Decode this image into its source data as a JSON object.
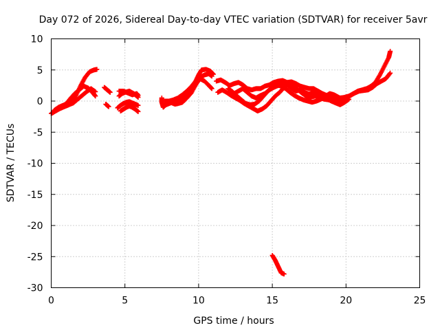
{
  "chart_data": {
    "type": "scatter",
    "title": "Day 072 of 2026, Sidereal Day-to-day VTEC variation (SDTVAR) for receiver 5avr",
    "xlabel": "GPS time / hours",
    "ylabel": "SDTVAR / TECUs",
    "xlim": [
      0,
      25
    ],
    "ylim": [
      -30,
      10
    ],
    "x_ticks": [
      "0",
      "5",
      "10",
      "15",
      "20",
      "25"
    ],
    "y_ticks": [
      "10",
      "5",
      "0",
      "-5",
      "-10",
      "-15",
      "-20",
      "-25",
      "-30"
    ],
    "grid": true,
    "marker": "+",
    "series": [
      {
        "name": "SDTVAR",
        "color": "#ff0000",
        "tracks": [
          [
            [
              0.0,
              -2.0
            ],
            [
              0.3,
              -1.6
            ],
            [
              0.6,
              -1.2
            ],
            [
              0.9,
              -0.9
            ],
            [
              1.2,
              -0.6
            ],
            [
              1.5,
              -0.3
            ],
            [
              1.8,
              0.3
            ],
            [
              2.1,
              0.9
            ],
            [
              2.4,
              1.5
            ],
            [
              2.7,
              2.0
            ],
            [
              3.0,
              1.5
            ]
          ],
          [
            [
              0.2,
              -1.5
            ],
            [
              0.5,
              -1.0
            ],
            [
              0.8,
              -0.7
            ],
            [
              1.1,
              -0.4
            ],
            [
              1.4,
              0.0
            ],
            [
              1.7,
              1.0
            ],
            [
              2.0,
              2.5
            ],
            [
              2.3,
              3.8
            ],
            [
              2.6,
              4.7
            ],
            [
              2.9,
              5.0
            ],
            [
              3.1,
              5.1
            ]
          ],
          [
            [
              0.1,
              -1.9
            ],
            [
              0.4,
              -1.3
            ],
            [
              0.7,
              -0.8
            ],
            [
              1.0,
              -0.5
            ],
            [
              1.3,
              0.4
            ],
            [
              1.6,
              1.2
            ],
            [
              1.9,
              1.8
            ],
            [
              2.2,
              2.4
            ],
            [
              2.5,
              2.1
            ],
            [
              2.8,
              1.4
            ],
            [
              3.0,
              0.8
            ]
          ],
          [
            [
              3.6,
              2.2
            ],
            [
              3.8,
              1.8
            ],
            [
              4.0,
              1.4
            ]
          ],
          [
            [
              3.7,
              -0.5
            ],
            [
              3.9,
              -0.9
            ]
          ],
          [
            [
              4.6,
              1.6
            ],
            [
              4.9,
              1.6
            ],
            [
              5.2,
              1.3
            ],
            [
              5.5,
              1.0
            ],
            [
              5.8,
              1.2
            ],
            [
              5.9,
              0.9
            ]
          ],
          [
            [
              4.6,
              0.8
            ],
            [
              4.8,
              1.2
            ],
            [
              5.0,
              1.4
            ],
            [
              5.3,
              1.6
            ],
            [
              5.6,
              1.2
            ],
            [
              5.9,
              0.6
            ]
          ],
          [
            [
              4.5,
              -1.1
            ],
            [
              4.7,
              -0.7
            ],
            [
              4.9,
              -0.4
            ],
            [
              5.1,
              -0.2
            ],
            [
              5.3,
              -0.1
            ],
            [
              5.5,
              -0.3
            ],
            [
              5.7,
              -0.5
            ],
            [
              5.9,
              -0.7
            ]
          ],
          [
            [
              4.7,
              -1.6
            ],
            [
              4.9,
              -1.3
            ],
            [
              5.1,
              -1.0
            ],
            [
              5.3,
              -0.8
            ],
            [
              5.5,
              -1.0
            ],
            [
              5.7,
              -1.3
            ],
            [
              5.9,
              -1.7
            ]
          ],
          [
            [
              7.5,
              0.5
            ],
            [
              7.5,
              -0.2
            ],
            [
              7.6,
              -1.0
            ],
            [
              7.8,
              -0.5
            ],
            [
              8.0,
              0.0
            ],
            [
              8.2,
              -0.3
            ],
            [
              8.4,
              -0.5
            ],
            [
              8.6,
              -0.4
            ],
            [
              8.9,
              -0.2
            ],
            [
              9.2,
              0.5
            ],
            [
              9.5,
              1.3
            ],
            [
              9.8,
              2.6
            ],
            [
              10.1,
              3.8
            ],
            [
              10.4,
              4.2
            ],
            [
              10.7,
              4.4
            ],
            [
              10.9,
              4.0
            ]
          ],
          [
            [
              7.7,
              0.0
            ],
            [
              8.0,
              0.0
            ],
            [
              8.3,
              0.2
            ],
            [
              8.6,
              0.5
            ],
            [
              8.9,
              1.0
            ],
            [
              9.2,
              1.6
            ],
            [
              9.5,
              2.3
            ],
            [
              9.8,
              3.2
            ],
            [
              10.0,
              4.2
            ],
            [
              10.2,
              5.0
            ],
            [
              10.5,
              5.1
            ],
            [
              10.8,
              4.8
            ],
            [
              11.0,
              4.3
            ]
          ],
          [
            [
              7.8,
              -0.6
            ],
            [
              8.1,
              -0.3
            ],
            [
              8.4,
              0.0
            ],
            [
              8.7,
              0.3
            ],
            [
              9.0,
              0.7
            ],
            [
              9.3,
              1.2
            ],
            [
              9.6,
              2.0
            ],
            [
              9.9,
              3.0
            ],
            [
              10.1,
              3.6
            ],
            [
              10.4,
              3.2
            ],
            [
              10.7,
              2.5
            ],
            [
              10.9,
              2.0
            ]
          ],
          [
            [
              11.2,
              3.2
            ],
            [
              11.5,
              3.4
            ],
            [
              11.8,
              3.0
            ],
            [
              12.1,
              2.5
            ],
            [
              12.4,
              2.8
            ],
            [
              12.7,
              3.0
            ],
            [
              13.0,
              2.6
            ],
            [
              13.3,
              2.0
            ],
            [
              13.6,
              1.8
            ],
            [
              13.9,
              2.0
            ],
            [
              14.2,
              2.0
            ],
            [
              14.5,
              2.4
            ],
            [
              14.8,
              2.6
            ],
            [
              15.1,
              3.0
            ],
            [
              15.4,
              3.2
            ],
            [
              15.7,
              3.3
            ],
            [
              16.0,
              3.0
            ],
            [
              16.3,
              3.1
            ],
            [
              16.6,
              2.8
            ],
            [
              16.9,
              2.4
            ],
            [
              17.2,
              2.2
            ],
            [
              17.5,
              2.0
            ],
            [
              17.8,
              2.0
            ],
            [
              18.1,
              1.6
            ],
            [
              18.4,
              1.2
            ],
            [
              18.7,
              0.9
            ],
            [
              19.0,
              0.6
            ],
            [
              19.3,
              0.5
            ],
            [
              19.6,
              0.5
            ],
            [
              19.9,
              0.6
            ],
            [
              20.2,
              0.8
            ],
            [
              20.5,
              1.2
            ],
            [
              20.8,
              1.6
            ],
            [
              21.1,
              1.8
            ],
            [
              21.4,
              2.0
            ],
            [
              21.7,
              2.4
            ],
            [
              22.0,
              3.0
            ],
            [
              22.3,
              4.2
            ],
            [
              22.6,
              5.6
            ],
            [
              22.9,
              7.0
            ],
            [
              23.0,
              8.0
            ]
          ],
          [
            [
              11.3,
              1.4
            ],
            [
              11.6,
              1.8
            ],
            [
              11.9,
              1.4
            ],
            [
              12.2,
              0.9
            ],
            [
              12.5,
              0.5
            ],
            [
              12.8,
              0.1
            ],
            [
              13.1,
              -0.4
            ],
            [
              13.4,
              -0.8
            ],
            [
              13.7,
              -1.2
            ],
            [
              14.0,
              -1.6
            ],
            [
              14.3,
              -1.3
            ],
            [
              14.6,
              -0.8
            ],
            [
              14.9,
              0.0
            ],
            [
              15.2,
              0.8
            ],
            [
              15.5,
              1.4
            ],
            [
              15.8,
              2.2
            ],
            [
              16.1,
              2.8
            ],
            [
              16.4,
              2.4
            ],
            [
              16.7,
              1.9
            ],
            [
              17.0,
              1.3
            ],
            [
              17.3,
              0.8
            ],
            [
              17.6,
              0.6
            ],
            [
              17.9,
              0.8
            ],
            [
              18.2,
              0.6
            ],
            [
              18.5,
              0.3
            ],
            [
              18.8,
              0.2
            ],
            [
              19.1,
              0.1
            ],
            [
              19.4,
              -0.1
            ],
            [
              19.7,
              0.2
            ],
            [
              20.0,
              0.4
            ],
            [
              20.3,
              0.9
            ],
            [
              20.6,
              1.3
            ],
            [
              20.9,
              1.6
            ],
            [
              21.2,
              1.7
            ],
            [
              21.5,
              1.8
            ],
            [
              21.8,
              2.2
            ],
            [
              22.1,
              2.8
            ],
            [
              22.4,
              3.2
            ],
            [
              22.7,
              3.6
            ],
            [
              23.0,
              4.5
            ]
          ],
          [
            [
              12.0,
              2.0
            ],
            [
              12.3,
              1.5
            ],
            [
              12.6,
              0.8
            ],
            [
              12.9,
              0.2
            ],
            [
              13.2,
              -0.4
            ],
            [
              13.5,
              -0.6
            ],
            [
              13.8,
              -0.5
            ],
            [
              14.1,
              0.0
            ],
            [
              14.4,
              0.8
            ],
            [
              14.7,
              1.6
            ],
            [
              15.0,
              2.2
            ],
            [
              15.3,
              2.6
            ],
            [
              15.6,
              2.4
            ],
            [
              15.9,
              2.0
            ],
            [
              16.2,
              1.4
            ],
            [
              16.5,
              0.9
            ],
            [
              16.8,
              0.5
            ],
            [
              17.1,
              0.2
            ],
            [
              17.4,
              0.0
            ],
            [
              17.7,
              -0.2
            ],
            [
              18.0,
              0.0
            ],
            [
              18.3,
              0.3
            ],
            [
              18.6,
              0.8
            ],
            [
              18.9,
              1.2
            ],
            [
              19.2,
              1.0
            ],
            [
              19.5,
              0.6
            ],
            [
              19.8,
              0.3
            ],
            [
              20.1,
              0.5
            ]
          ],
          [
            [
              12.4,
              1.2
            ],
            [
              12.7,
              1.6
            ],
            [
              13.0,
              2.0
            ],
            [
              13.3,
              1.4
            ],
            [
              13.6,
              0.8
            ],
            [
              13.9,
              0.5
            ],
            [
              14.2,
              0.9
            ],
            [
              14.5,
              1.2
            ],
            [
              14.8,
              1.8
            ],
            [
              15.1,
              2.2
            ],
            [
              15.4,
              2.5
            ],
            [
              15.7,
              2.9
            ],
            [
              16.0,
              2.6
            ],
            [
              16.3,
              2.0
            ],
            [
              16.6,
              1.6
            ],
            [
              16.9,
              1.8
            ],
            [
              17.2,
              1.4
            ],
            [
              17.5,
              1.1
            ],
            [
              17.8,
              1.4
            ],
            [
              18.1,
              1.0
            ],
            [
              18.4,
              0.6
            ],
            [
              18.7,
              0.4
            ],
            [
              19.0,
              0.0
            ],
            [
              19.3,
              -0.3
            ],
            [
              19.6,
              -0.6
            ],
            [
              19.9,
              -0.2
            ],
            [
              20.2,
              0.3
            ]
          ],
          [
            [
              15.0,
              -24.8
            ],
            [
              15.2,
              -25.6
            ],
            [
              15.4,
              -26.6
            ],
            [
              15.6,
              -27.6
            ],
            [
              15.8,
              -27.8
            ]
          ]
        ]
      }
    ]
  }
}
